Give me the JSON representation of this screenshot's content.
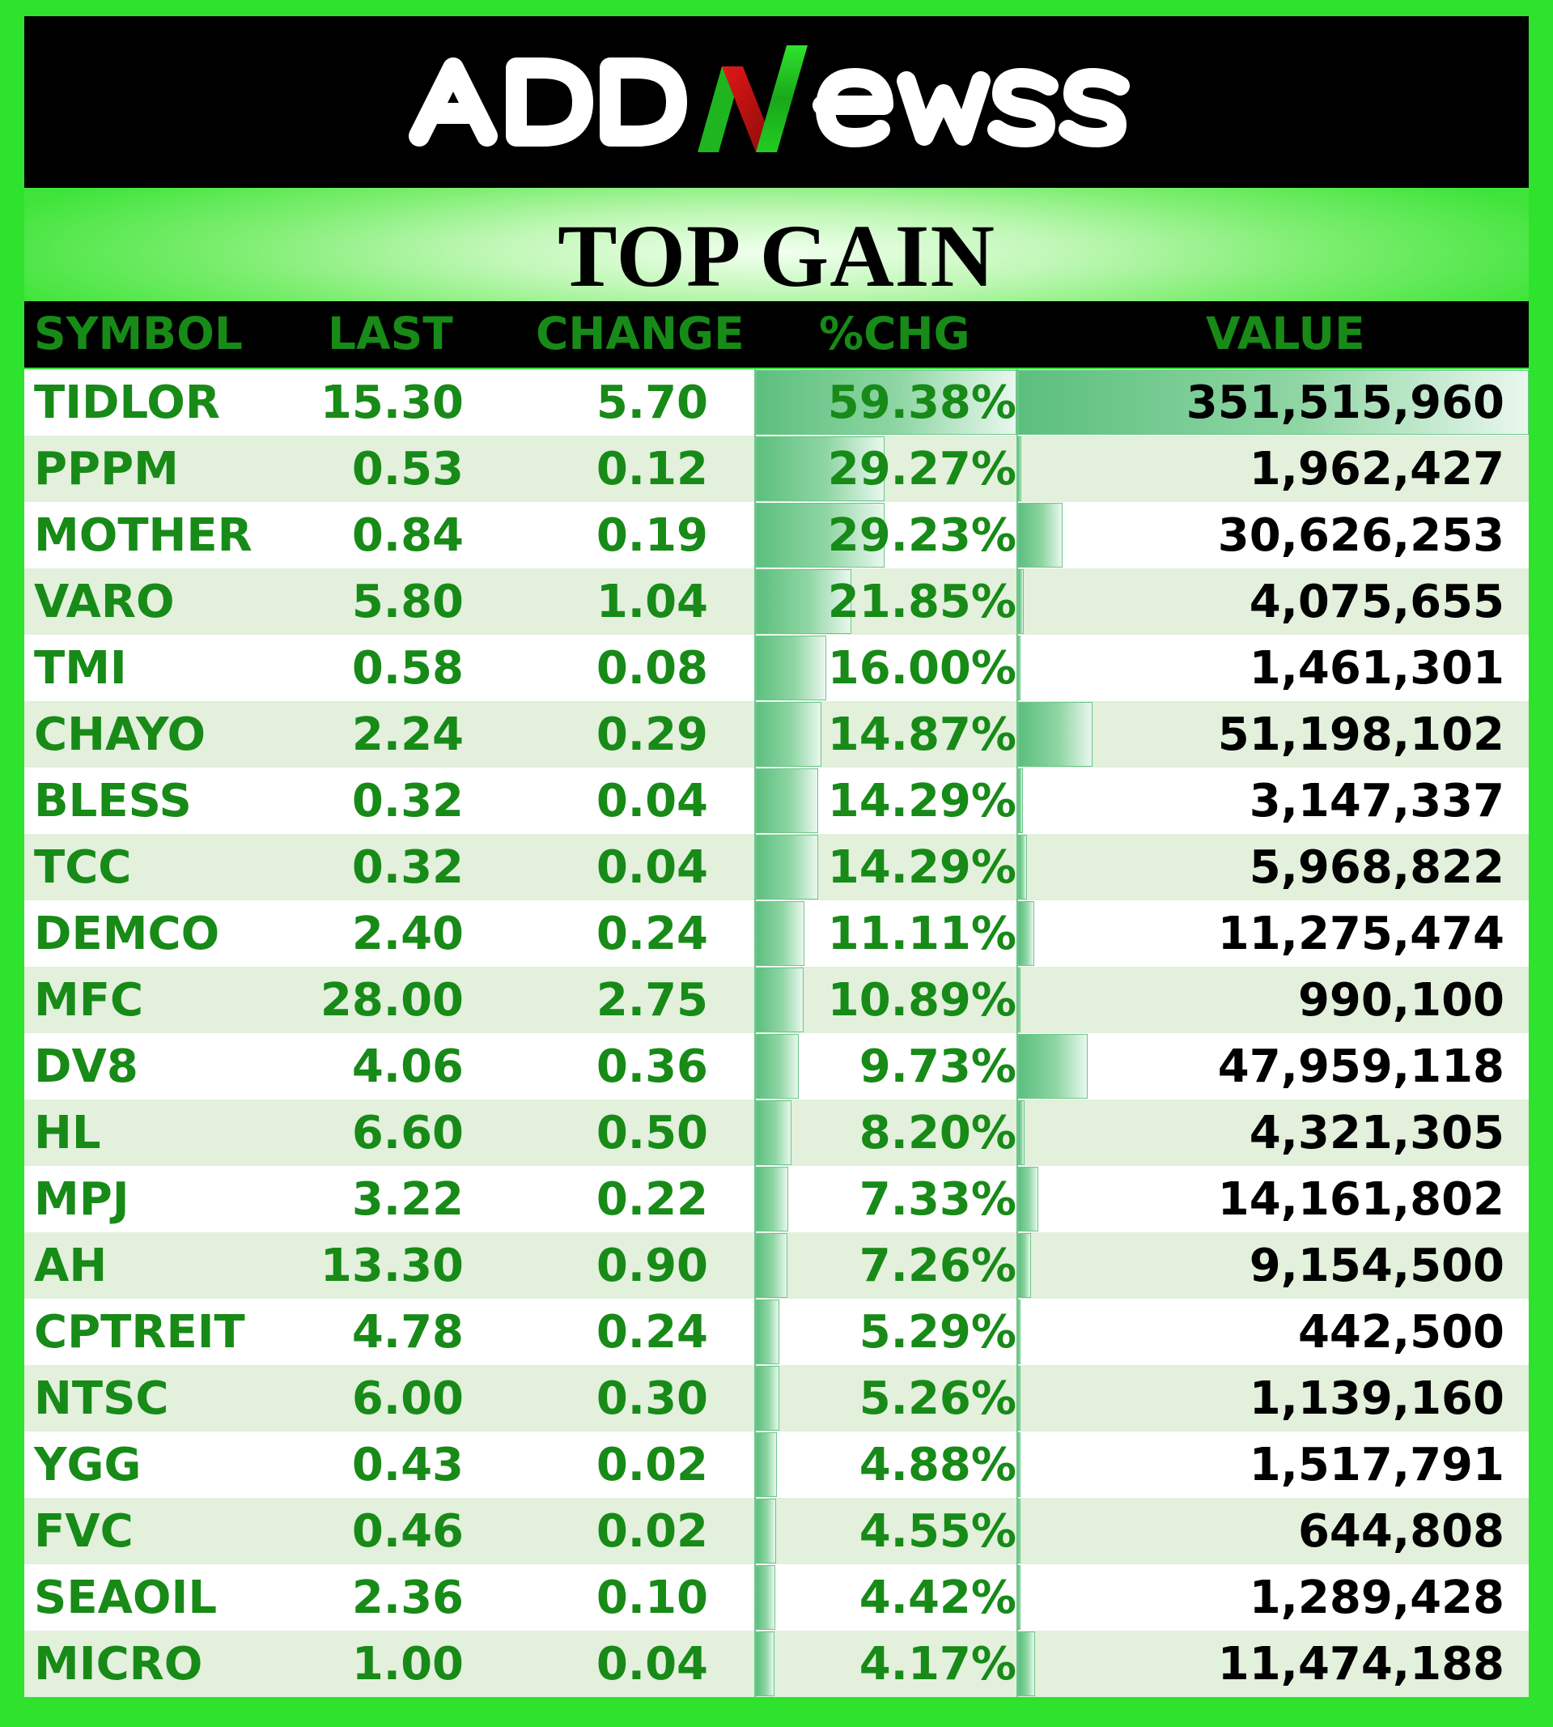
{
  "logo": {
    "text": "ADDNewss",
    "alt_label": "ADDNewss logo"
  },
  "banner": {
    "title": "TOP GAIN"
  },
  "colors": {
    "frame": "#2ee22e",
    "header_bg": "#000000",
    "header_text": "#178a17",
    "symbol_text": "#178a17",
    "value_text": "#000000",
    "row_alt": "#e2f0dc",
    "bar": "#5cbf7e"
  },
  "columns": {
    "symbol": "SYMBOL",
    "last": "LAST",
    "change": "CHANGE",
    "pct": "%CHG",
    "value": "VALUE"
  },
  "rows": [
    {
      "symbol": "TIDLOR",
      "last": "15.30",
      "change": "5.70",
      "pct": "59.38%",
      "value": "351,515,960",
      "pct_num": 59.38,
      "value_num": 351515960
    },
    {
      "symbol": "PPPM",
      "last": "0.53",
      "change": "0.12",
      "pct": "29.27%",
      "value": "1,962,427",
      "pct_num": 29.27,
      "value_num": 1962427
    },
    {
      "symbol": "MOTHER",
      "last": "0.84",
      "change": "0.19",
      "pct": "29.23%",
      "value": "30,626,253",
      "pct_num": 29.23,
      "value_num": 30626253
    },
    {
      "symbol": "VARO",
      "last": "5.80",
      "change": "1.04",
      "pct": "21.85%",
      "value": "4,075,655",
      "pct_num": 21.85,
      "value_num": 4075655
    },
    {
      "symbol": "TMI",
      "last": "0.58",
      "change": "0.08",
      "pct": "16.00%",
      "value": "1,461,301",
      "pct_num": 16.0,
      "value_num": 1461301
    },
    {
      "symbol": "CHAYO",
      "last": "2.24",
      "change": "0.29",
      "pct": "14.87%",
      "value": "51,198,102",
      "pct_num": 14.87,
      "value_num": 51198102
    },
    {
      "symbol": "BLESS",
      "last": "0.32",
      "change": "0.04",
      "pct": "14.29%",
      "value": "3,147,337",
      "pct_num": 14.29,
      "value_num": 3147337
    },
    {
      "symbol": "TCC",
      "last": "0.32",
      "change": "0.04",
      "pct": "14.29%",
      "value": "5,968,822",
      "pct_num": 14.29,
      "value_num": 5968822
    },
    {
      "symbol": "DEMCO",
      "last": "2.40",
      "change": "0.24",
      "pct": "11.11%",
      "value": "11,275,474",
      "pct_num": 11.11,
      "value_num": 11275474
    },
    {
      "symbol": "MFC",
      "last": "28.00",
      "change": "2.75",
      "pct": "10.89%",
      "value": "990,100",
      "pct_num": 10.89,
      "value_num": 990100
    },
    {
      "symbol": "DV8",
      "last": "4.06",
      "change": "0.36",
      "pct": "9.73%",
      "value": "47,959,118",
      "pct_num": 9.73,
      "value_num": 47959118
    },
    {
      "symbol": "HL",
      "last": "6.60",
      "change": "0.50",
      "pct": "8.20%",
      "value": "4,321,305",
      "pct_num": 8.2,
      "value_num": 4321305
    },
    {
      "symbol": "MPJ",
      "last": "3.22",
      "change": "0.22",
      "pct": "7.33%",
      "value": "14,161,802",
      "pct_num": 7.33,
      "value_num": 14161802
    },
    {
      "symbol": "AH",
      "last": "13.30",
      "change": "0.90",
      "pct": "7.26%",
      "value": "9,154,500",
      "pct_num": 7.26,
      "value_num": 9154500
    },
    {
      "symbol": "CPTREIT",
      "last": "4.78",
      "change": "0.24",
      "pct": "5.29%",
      "value": "442,500",
      "pct_num": 5.29,
      "value_num": 442500
    },
    {
      "symbol": "NTSC",
      "last": "6.00",
      "change": "0.30",
      "pct": "5.26%",
      "value": "1,139,160",
      "pct_num": 5.26,
      "value_num": 1139160
    },
    {
      "symbol": "YGG",
      "last": "0.43",
      "change": "0.02",
      "pct": "4.88%",
      "value": "1,517,791",
      "pct_num": 4.88,
      "value_num": 1517791
    },
    {
      "symbol": "FVC",
      "last": "0.46",
      "change": "0.02",
      "pct": "4.55%",
      "value": "644,808",
      "pct_num": 4.55,
      "value_num": 644808
    },
    {
      "symbol": "SEAOIL",
      "last": "2.36",
      "change": "0.10",
      "pct": "4.42%",
      "value": "1,289,428",
      "pct_num": 4.42,
      "value_num": 1289428
    },
    {
      "symbol": "MICRO",
      "last": "1.00",
      "change": "0.04",
      "pct": "4.17%",
      "value": "11,474,188",
      "pct_num": 4.17,
      "value_num": 11474188
    }
  ]
}
